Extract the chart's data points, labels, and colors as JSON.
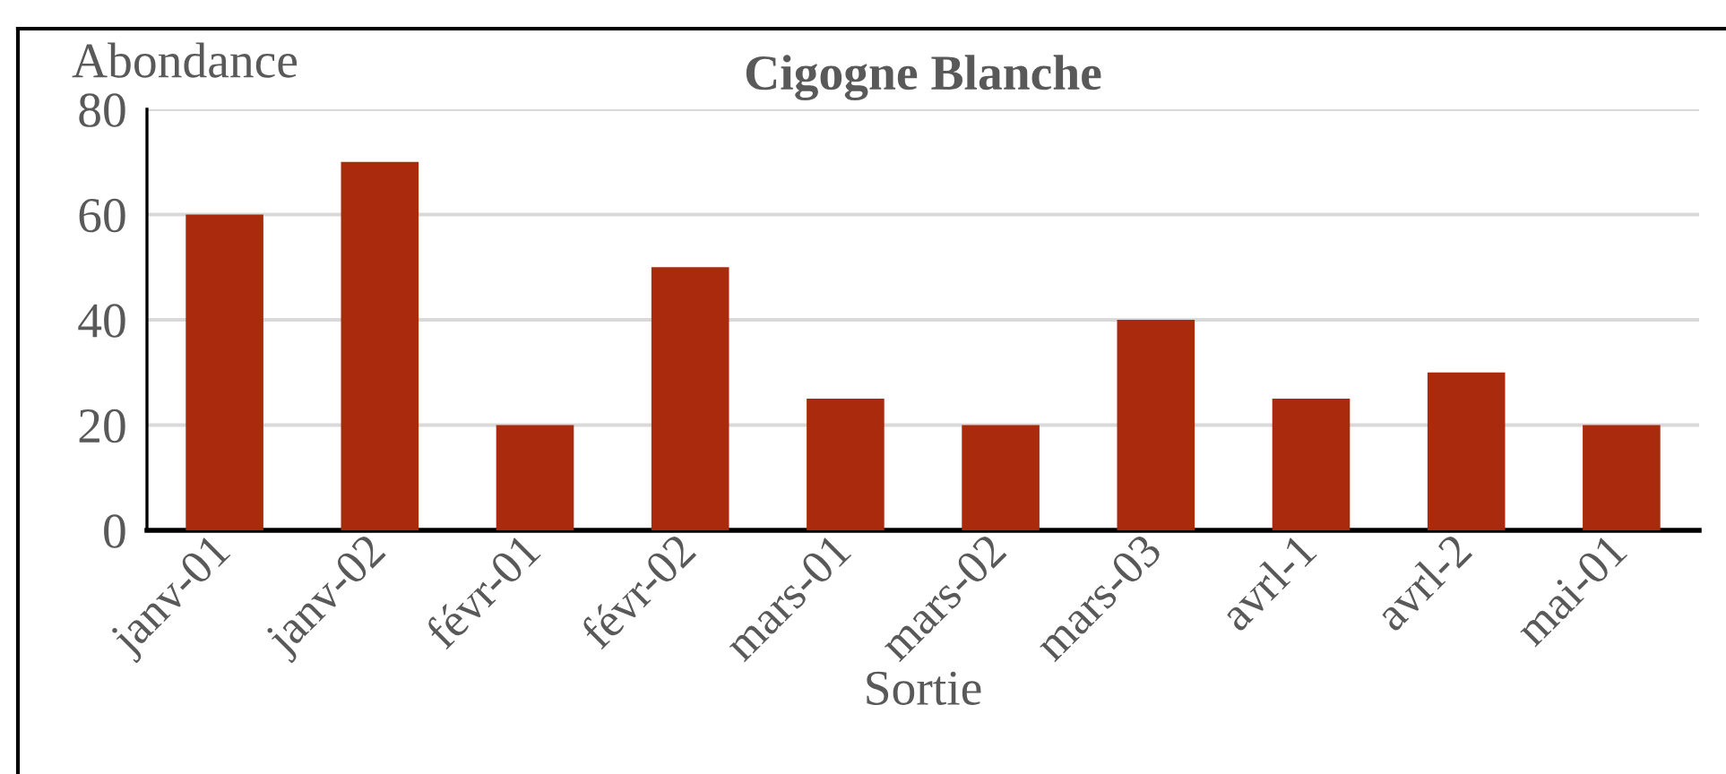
{
  "chart_data": {
    "type": "bar",
    "title": "Cigogne Blanche",
    "xlabel": "Sortie",
    "ylabel": "Abondance",
    "categories": [
      "janv-01",
      "janv-02",
      "févr-01",
      "févr-02",
      "mars-01",
      "mars-02",
      "mars-03",
      "avrl-1",
      "avrl-2",
      "mai-01"
    ],
    "values": [
      60,
      70,
      20,
      50,
      25,
      20,
      40,
      25,
      30,
      20
    ],
    "color": "#a92a0c",
    "ylim": [
      0,
      80
    ],
    "yticks": [
      0,
      20,
      40,
      60,
      80
    ],
    "grid": "y"
  }
}
